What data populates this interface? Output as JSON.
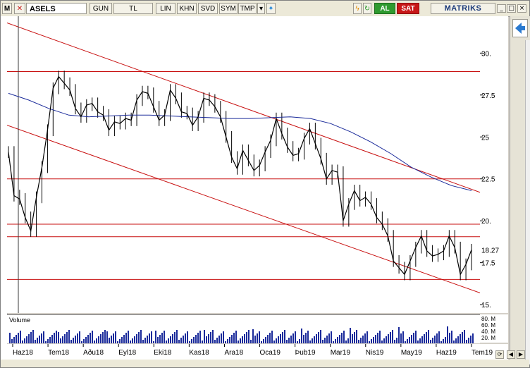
{
  "toolbar": {
    "menu_glyph": "M",
    "symbol": "ASELS",
    "buttons": [
      "GUN",
      "TL",
      "LIN",
      "KHN",
      "SVD",
      "SYM",
      "TMP"
    ],
    "buy_label": "AL",
    "sell_label": "SAT",
    "brand": "MATRIKS",
    "window_buttons": [
      "_",
      "□",
      "×"
    ]
  },
  "chart_data": {
    "type": "line",
    "title": "",
    "xlabel": "",
    "ylabel": "",
    "ylim": [
      14.5,
      32.2
    ],
    "price_ticks": [
      "30.",
      "27.5",
      "25",
      "22.5",
      "20.",
      "17.5",
      "15."
    ],
    "last_price_label": "18.27",
    "x_labels": [
      "Haz18",
      "Tem18",
      "Ağu18",
      "Eyl18",
      "Eki18",
      "Kas18",
      "Ara18",
      "Oca19",
      "Şub19",
      "Mar19",
      "Nis19",
      "May19",
      "Haz19",
      "Tem19"
    ],
    "x_label_display": [
      "Haz18",
      "Tem18",
      "Aðu18",
      "Eyl18",
      "Eki18",
      "Kas18",
      "Ara18",
      "Oca19",
      "Þub19",
      "Mar19",
      "Nis19",
      "May19",
      "Haz19",
      "Tem19"
    ],
    "horizontal_levels": [
      28.9,
      22.5,
      19.8,
      19.05,
      16.5
    ],
    "trend_lines": [
      {
        "from": [
          0,
          31.8
        ],
        "to": [
          1,
          21.7
        ]
      },
      {
        "from": [
          0,
          25.7
        ],
        "to": [
          1,
          15.7
        ]
      }
    ],
    "series": [
      {
        "name": "price",
        "values": [
          24.1,
          21.5,
          21.3,
          20.2,
          19.4,
          21.4,
          23.2,
          25.4,
          27.9,
          28.6,
          28.2,
          27.8,
          26.7,
          26.2,
          26.9,
          27.0,
          26.5,
          26.3,
          25.4,
          25.9,
          25.8,
          26.1,
          26.0,
          27.2,
          27.7,
          27.6,
          26.8,
          26.0,
          26.3,
          27.8,
          27.3,
          26.5,
          26.4,
          25.7,
          26.2,
          27.3,
          27.2,
          26.8,
          26.2,
          25.0,
          23.8,
          23.1,
          24.2,
          23.6,
          23.0,
          23.3,
          24.1,
          24.8,
          26.1,
          25.2,
          24.4,
          23.9,
          24.0,
          24.9,
          25.5,
          24.6,
          23.7,
          22.5,
          23.0,
          22.9,
          20.0,
          21.0,
          21.8,
          21.2,
          21.4,
          21.0,
          20.2,
          19.8,
          19.1,
          17.6,
          17.2,
          16.8,
          17.6,
          18.4,
          19.1,
          18.2,
          17.9,
          18.0,
          18.2,
          19.1,
          18.4,
          16.8,
          17.4,
          18.27
        ]
      },
      {
        "name": "moving_average",
        "values": [
          27.6,
          27.2,
          26.7,
          26.3,
          26.2,
          26.25,
          26.3,
          26.3,
          26.25,
          26.2,
          26.15,
          26.1,
          26.1,
          26.15,
          26.2,
          26.1,
          25.8,
          25.3,
          24.7,
          24.0,
          23.2,
          22.6,
          22.1,
          21.8
        ]
      }
    ],
    "volume": {
      "label": "Volume",
      "axis_labels": [
        "80. M",
        "60. M",
        "40. M",
        "20. M"
      ]
    }
  },
  "side_panel": {
    "back_icon": "arrow-left-icon"
  },
  "colors": {
    "channel": "#c81010",
    "moving_average": "#1a2a9a",
    "price": "#000000"
  }
}
